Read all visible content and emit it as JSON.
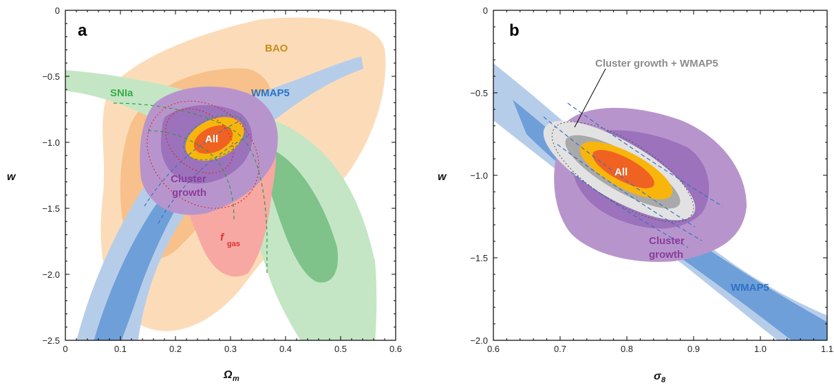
{
  "chart_data": [
    {
      "type": "contour",
      "panel_label": "a",
      "xlabel": "Ω",
      "xlabel_sub": "m",
      "ylabel": "w",
      "xlim": [
        0,
        0.6
      ],
      "ylim": [
        -2.5,
        0
      ],
      "x_ticks": [
        "0",
        "0.1",
        "0.2",
        "0.3",
        "0.4",
        "0.5",
        "0.6"
      ],
      "y_ticks": [
        "0",
        "−0.5",
        "−1.0",
        "−1.5",
        "−2.0",
        "−2.5"
      ],
      "grid": false,
      "annotations": [
        {
          "text": "BAO",
          "color": "#c98a1e"
        },
        {
          "text": "SNIa",
          "color": "#3aaa4a"
        },
        {
          "text": "WMAP5",
          "color": "#2a72c4"
        },
        {
          "text": "All",
          "color": "#ffffff"
        },
        {
          "text": "Cluster",
          "color": "#8a3c9c"
        },
        {
          "text": "growth",
          "color": "#8a3c9c"
        },
        {
          "text": "f",
          "sub": "gas",
          "color": "#e03030"
        }
      ],
      "series_colors": {
        "BAO": "#f9c98f",
        "SNIa": "#8fce8f",
        "WMAP5": "#8fb0e0",
        "fgas": "#f49a9a",
        "Cluster growth": "#a77fc2",
        "All": "#f36a1e"
      }
    },
    {
      "type": "contour",
      "panel_label": "b",
      "xlabel": "σ",
      "xlabel_sub": "8",
      "ylabel": "w",
      "xlim": [
        0.6,
        1.1
      ],
      "ylim": [
        -2.0,
        0
      ],
      "x_ticks": [
        "0.6",
        "0.7",
        "0.8",
        "0.9",
        "1.0",
        "1.1"
      ],
      "y_ticks": [
        "0",
        "−0.5",
        "−1.0",
        "−1.5",
        "−2.0"
      ],
      "grid": false,
      "annotations": [
        {
          "text": "Cluster growth + WMAP5",
          "color": "#8c8c8c"
        },
        {
          "text": "All",
          "color": "#ffffff"
        },
        {
          "text": "Cluster",
          "color": "#8a3c9c"
        },
        {
          "text": "growth",
          "color": "#8a3c9c"
        },
        {
          "text": "WMAP5",
          "color": "#2a72c4"
        }
      ],
      "series_colors": {
        "WMAP5": "#8fb0e0",
        "Cluster growth": "#a77fc2",
        "Cluster growth + WMAP5": "#d0d0d0",
        "All": "#f36a1e"
      }
    }
  ]
}
